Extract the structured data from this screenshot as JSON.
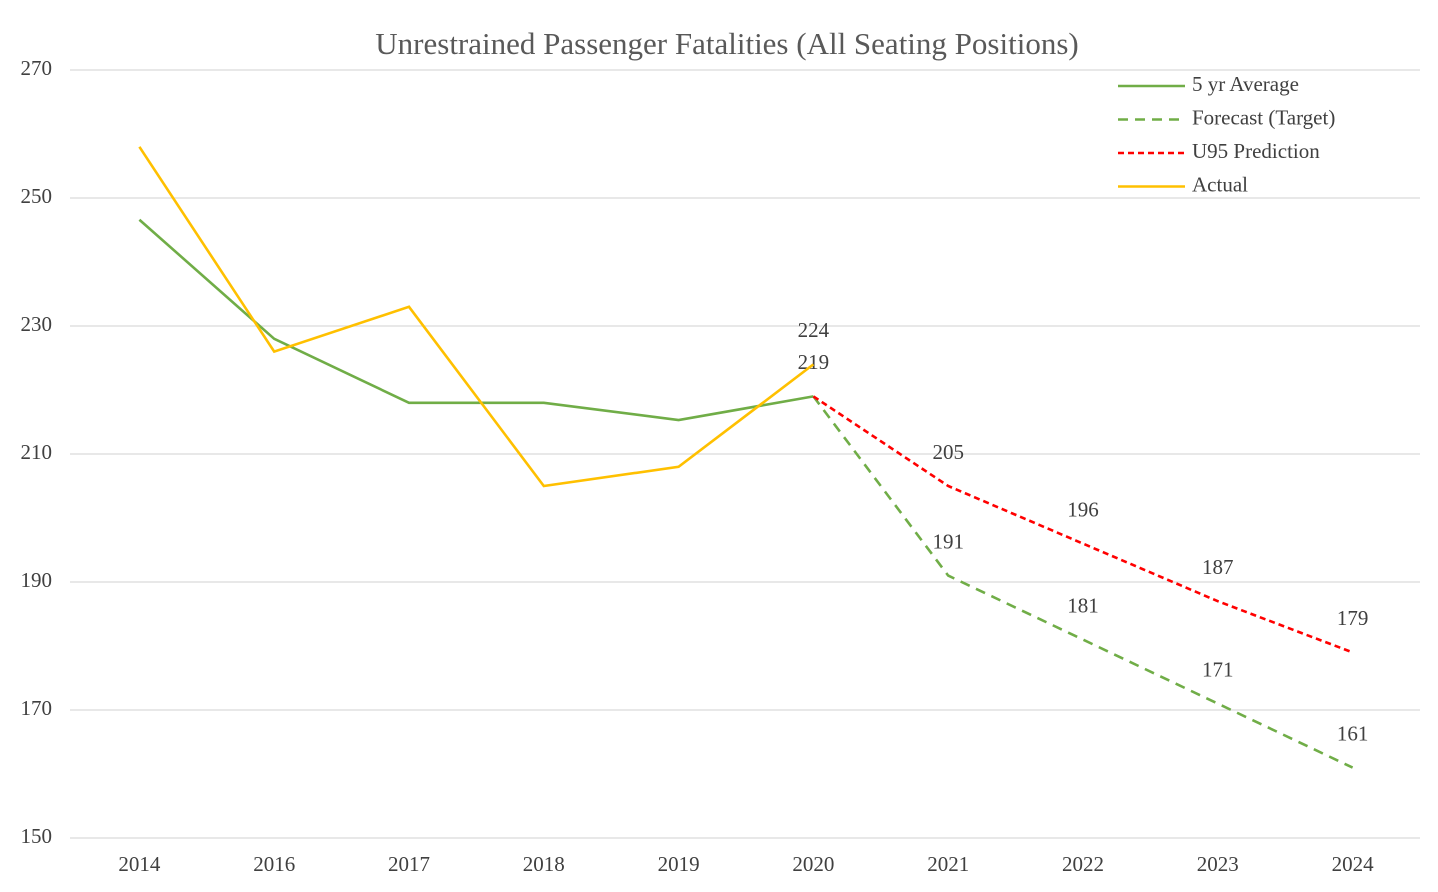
{
  "chart_data": {
    "type": "line",
    "title": "Unrestrained Passenger Fatalities (All Seating Positions)",
    "categories": [
      "2014",
      "2016",
      "2017",
      "2018",
      "2019",
      "2020",
      "2021",
      "2022",
      "2023",
      "2024"
    ],
    "ylim": [
      150,
      270
    ],
    "yticks": [
      150,
      170,
      190,
      210,
      230,
      250,
      270
    ],
    "grid": true,
    "legend": "upper right",
    "series": [
      {
        "name": "5 yr Average",
        "color": "#70ad47",
        "dash": "solid",
        "values": [
          246.6,
          228,
          218,
          218,
          215.3,
          219,
          null,
          null,
          null,
          null
        ],
        "value_labels": [
          null,
          null,
          null,
          null,
          null,
          "219",
          null,
          null,
          null,
          null
        ]
      },
      {
        "name": "Forecast (Target)",
        "color": "#70ad47",
        "dash": "dashed",
        "values": [
          null,
          null,
          null,
          null,
          null,
          219,
          191,
          181,
          171,
          161
        ],
        "value_labels": [
          null,
          null,
          null,
          null,
          null,
          null,
          "191",
          "181",
          "171",
          "161"
        ]
      },
      {
        "name": "U95 Prediction",
        "color": "#ff0000",
        "dash": "dotted",
        "values": [
          null,
          null,
          null,
          null,
          null,
          219,
          205,
          196,
          187,
          179
        ],
        "value_labels": [
          null,
          null,
          null,
          null,
          null,
          null,
          "205",
          "196",
          "187",
          "179"
        ]
      },
      {
        "name": "Actual",
        "color": "#ffc000",
        "dash": "solid",
        "values": [
          258,
          226,
          233,
          205,
          208,
          224,
          null,
          null,
          null,
          null
        ],
        "value_labels": [
          null,
          null,
          null,
          null,
          null,
          "224",
          null,
          null,
          null,
          null
        ]
      }
    ]
  }
}
